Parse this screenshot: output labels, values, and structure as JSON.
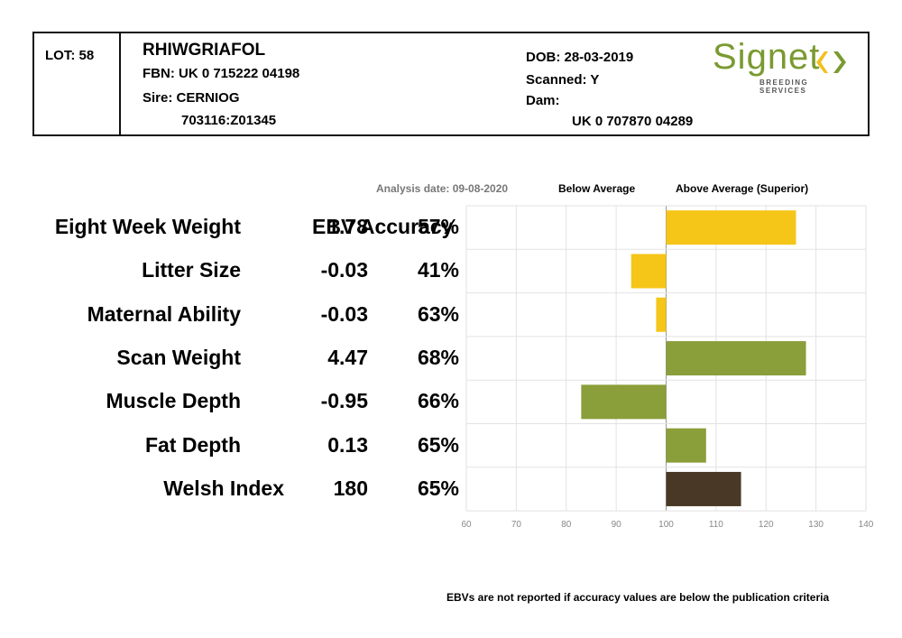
{
  "header": {
    "lot": "LOT: 58",
    "name": "RHIWGRIAFOL",
    "fbn": "FBN: UK 0 715222 04198",
    "sire": "Sire: CERNIOG",
    "sire_id": "703116:Z01345",
    "dob": "DOB: 28-03-2019",
    "scanned": "Scanned: Y",
    "dam": "Dam:",
    "dam_id": "UK 0 707870 04289"
  },
  "logo": {
    "word": "Signet",
    "sub": "BREEDING SERVICES",
    "colors": {
      "green": "#7a9a30",
      "yellow": "#f2c01e"
    }
  },
  "chart_header": {
    "analysis_date": "Analysis date: 09-08-2020",
    "below": "Below Average",
    "above": "Above Average (Superior)",
    "column_title": "EBV Accuracy"
  },
  "footer_note": "EBVs are not reported if accuracy values are below the publication criteria",
  "chart_data": {
    "type": "bar",
    "orientation": "horizontal",
    "baseline": 100,
    "xlim": [
      60,
      140
    ],
    "x_ticks": [
      "60",
      "70",
      "80",
      "90",
      "100",
      "110",
      "120",
      "130",
      "140"
    ],
    "grid": true,
    "categories": [
      "Eight Week Weight",
      "Litter Size",
      "Maternal Ability",
      "Scan Weight",
      "Muscle Depth",
      "Fat Depth",
      "Welsh Index"
    ],
    "ebv": [
      "1.78",
      "-0.03",
      "-0.03",
      "4.47",
      "-0.95",
      "0.13",
      "180"
    ],
    "accuracy": [
      "57%",
      "41%",
      "63%",
      "68%",
      "66%",
      "65%",
      "65%"
    ],
    "values": [
      126,
      93,
      98,
      128,
      83,
      108,
      115
    ],
    "bar_colors": [
      "#f5c518",
      "#f5c518",
      "#f5c518",
      "#8a9e3a",
      "#8a9e3a",
      "#8a9e3a",
      "#4a3826"
    ]
  }
}
